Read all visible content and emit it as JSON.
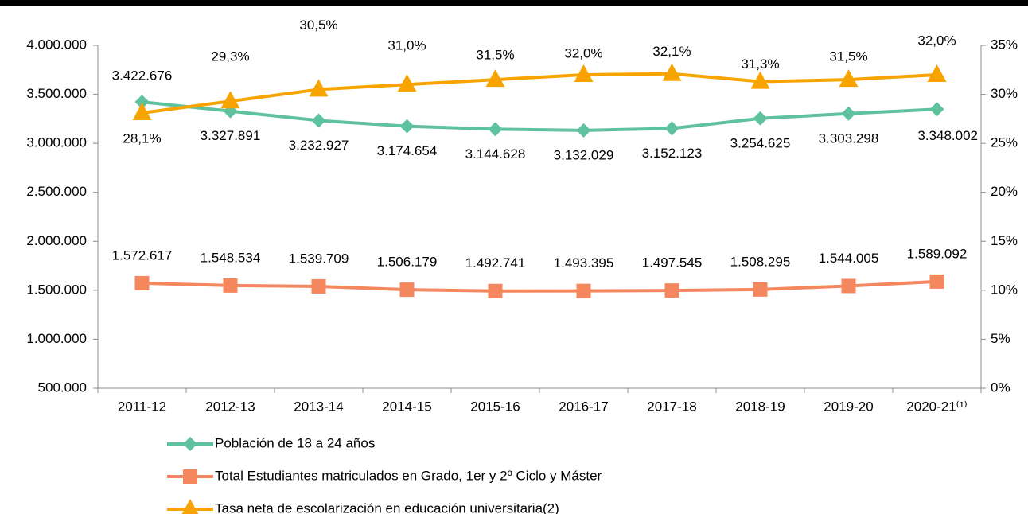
{
  "chart_data": {
    "type": "line",
    "categories": [
      "2011-12",
      "2012-13",
      "2013-14",
      "2014-15",
      "2015-16",
      "2016-17",
      "2017-18",
      "2018-19",
      "2019-20",
      "2020-21⁽¹⁾"
    ],
    "series": [
      {
        "name": "Población de 18 a 24 años",
        "color": "#5fc29e",
        "marker": "diamond",
        "values": [
          3422676,
          3327891,
          3232927,
          3174654,
          3144628,
          3132029,
          3152123,
          3254625,
          3303298,
          3348002
        ],
        "value_labels": [
          "3.422.676",
          "3.327.891",
          "3.232.927",
          "3.174.654",
          "3.144.628",
          "3.132.029",
          "3.152.123",
          "3.254.625",
          "3.303.298",
          "3.348.002"
        ]
      },
      {
        "name": "Total Estudiantes matriculados en Grado, 1er y 2º Ciclo y Máster",
        "color": "#f5875e",
        "marker": "square",
        "values": [
          1572617,
          1548534,
          1539709,
          1506179,
          1492741,
          1493395,
          1497545,
          1508295,
          1544005,
          1589092
        ],
        "value_labels": [
          "1.572.617",
          "1.548.534",
          "1.539.709",
          "1.506.179",
          "1.492.741",
          "1.493.395",
          "1.497.545",
          "1.508.295",
          "1.544.005",
          "1.589.092"
        ]
      },
      {
        "name": "Tasa neta de escolarización en educación universitaria(2)",
        "color": "#f7a400",
        "marker": "triangle",
        "axis": "y2",
        "values": [
          28.1,
          29.3,
          30.5,
          31.0,
          31.5,
          32.0,
          32.1,
          31.3,
          31.5,
          32.0
        ],
        "value_labels": [
          "28,1%",
          "29,3%",
          "30,5%",
          "31,0%",
          "31,5%",
          "32,0%",
          "32,1%",
          "31,3%",
          "31,5%",
          "32,0%"
        ]
      }
    ],
    "ylim": [
      500000,
      4000000
    ],
    "yticks": [
      {
        "value": 500000,
        "label": "500.000"
      },
      {
        "value": 1000000,
        "label": "1.000.000"
      },
      {
        "value": 1500000,
        "label": "1.500.000"
      },
      {
        "value": 2000000,
        "label": "2.000.000"
      },
      {
        "value": 2500000,
        "label": "2.500.000"
      },
      {
        "value": 3000000,
        "label": "3.000.000"
      },
      {
        "value": 3500000,
        "label": "3.500.000"
      },
      {
        "value": 4000000,
        "label": "4.000.000"
      }
    ],
    "y2lim": [
      0,
      35
    ],
    "y2ticks": [
      {
        "value": 0,
        "label": "0%"
      },
      {
        "value": 5,
        "label": "5%"
      },
      {
        "value": 10,
        "label": "10%"
      },
      {
        "value": 15,
        "label": "15%"
      },
      {
        "value": 20,
        "label": "20%"
      },
      {
        "value": 25,
        "label": "25%"
      },
      {
        "value": 30,
        "label": "30%"
      },
      {
        "value": 35,
        "label": "35%"
      }
    ],
    "grid": false,
    "legend": "bottom"
  }
}
